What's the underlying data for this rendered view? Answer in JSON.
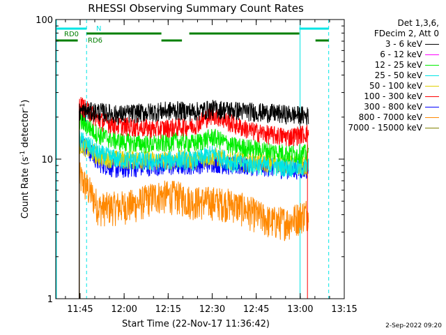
{
  "chart_data": {
    "type": "line",
    "title": "RHESSI Observing Summary Count Rates",
    "xlabel": "Start Time (22-Nov-17 11:36:42)",
    "ylabel": "Count Rate (s",
    "ylabel_sup": "-1",
    "ylabel_tail": " detector",
    "ylabel_sup2": "-1",
    "ylabel_close": ")",
    "y_scale": "log",
    "ylim": [
      1,
      100
    ],
    "y_ticks": [
      {
        "value": 1,
        "label": "1"
      },
      {
        "value": 10,
        "label": "10"
      },
      {
        "value": 100,
        "label": "100"
      }
    ],
    "xlim_minutes": [
      0,
      98.3
    ],
    "x_ticks": [
      {
        "minute": 8.3,
        "label": "11:45"
      },
      {
        "minute": 23.3,
        "label": "12:00"
      },
      {
        "minute": 38.3,
        "label": "12:15"
      },
      {
        "minute": 53.3,
        "label": "12:30"
      },
      {
        "minute": 68.3,
        "label": "12:45"
      },
      {
        "minute": 83.3,
        "label": "13:00"
      },
      {
        "minute": 98.3,
        "label": "13:15"
      }
    ],
    "grid": false,
    "data_range_minutes": [
      8.0,
      86.0
    ],
    "series": [
      {
        "name": "3 - 6 keV",
        "color": "#000000",
        "level": [
          22,
          22,
          21,
          21.5,
          22,
          22.5,
          22,
          23,
          22.5,
          22,
          21.5,
          21,
          20.5
        ]
      },
      {
        "name": "6 - 12 keV",
        "color": "#ff00ff",
        "level": [
          0,
          0,
          0,
          0,
          0,
          0,
          0,
          0,
          0,
          0,
          0,
          0,
          0
        ]
      },
      {
        "name": "12 - 25 keV",
        "color": "#00ee00",
        "level": [
          19,
          15,
          13.5,
          13,
          12.8,
          13.5,
          13,
          14.5,
          12.5,
          12,
          11.5,
          11,
          11
        ]
      },
      {
        "name": "25 - 50 keV",
        "color": "#00e5e5",
        "level": [
          14,
          11,
          10,
          9.8,
          9.5,
          10,
          9.8,
          11,
          9.5,
          9.2,
          9,
          8.8,
          8.8
        ]
      },
      {
        "name": "50 - 100 keV",
        "color": "#e0d000",
        "level": [
          13,
          10.5,
          10,
          10,
          9.8,
          10,
          10,
          10.5,
          9.8,
          9.5,
          9.5,
          9.2,
          9
        ]
      },
      {
        "name": "100 - 300 keV",
        "color": "#ff0000",
        "level": [
          25,
          19,
          17.5,
          17,
          16.5,
          17,
          17.5,
          21,
          18,
          16,
          15,
          14.5,
          15.5
        ]
      },
      {
        "name": "300 - 800 keV",
        "color": "#0000ff",
        "level": [
          13.5,
          9.5,
          8.5,
          8.8,
          9,
          9,
          9.2,
          9.5,
          9,
          9,
          8.8,
          8.5,
          8.5
        ]
      },
      {
        "name": "800 - 7000 keV",
        "color": "#ff8800",
        "level": [
          7.5,
          4.5,
          4.6,
          4.8,
          5.5,
          5.5,
          5,
          5,
          4.8,
          4.2,
          3.6,
          3.6,
          4.2
        ]
      },
      {
        "name": "7000 - 15000 keV",
        "color": "#808000",
        "level": [
          0,
          0,
          0,
          0,
          0,
          0,
          0,
          0,
          0,
          0,
          0,
          0,
          0
        ]
      }
    ],
    "annotations": {
      "rd0_label": "RD0",
      "rd6_label": "RD6",
      "n_label": "N",
      "detector_info_line1": "Det 1,3,6,",
      "detector_info_line2": "FDecim 2, Att 0",
      "generated": "2-Sep-2022 09:20"
    },
    "markers": {
      "cyan_solid_minutes": [
        0,
        83.0
      ],
      "cyan_dashed_minutes": [
        10.5,
        93.0
      ],
      "cyan_bar_segments_minutes": [
        [
          0,
          10.5
        ],
        [
          83.0,
          93.0
        ]
      ],
      "green_bar_upper_minutes": [
        [
          10.5,
          36.0
        ],
        [
          45.5,
          83.0
        ]
      ],
      "green_bar_lower_minutes": [
        [
          0,
          7.5
        ],
        [
          36.0,
          43.0
        ],
        [
          88.5,
          93.0
        ]
      ]
    },
    "colors": {
      "cyan": "#00e5e5",
      "green": "#007f00"
    }
  }
}
